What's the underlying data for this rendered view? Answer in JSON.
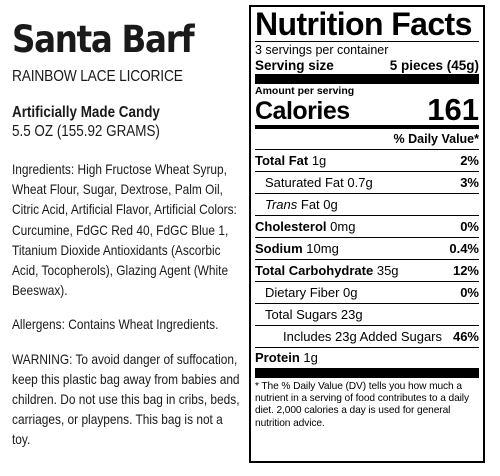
{
  "product": {
    "name": "Santa Barf",
    "subtitle": "RAINBOW LACE LICORICE",
    "candy_type": "Artificially Made Candy",
    "net_weight": "5.5 OZ (155.92 GRAMS)"
  },
  "ingredients": {
    "label": "Ingredients:",
    "text": "High Fructose Wheat Syrup, Wheat Flour, Sugar, Dextrose, Palm Oil, Citric Acid, Artificial Flavor, Artificial Colors: Curcumine, FdGC Red 40, FdGC Blue 1, Titanium Dioxide Antioxidants (Ascorbic Acid, Tocopherols), Glazing Agent (White Beeswax)."
  },
  "allergens": {
    "label": "Allergens:",
    "text": "Contains Wheat Ingredients."
  },
  "warning": {
    "text": "WARNING: To avoid danger of suffocation, keep this plastic bag away from babies and children. Do not use this bag in cribs, beds, carriages, or playpens. This bag is not a toy."
  },
  "nutrition": {
    "title": "Nutrition Facts",
    "servings_per_container": "3 servings per container",
    "serving_size_label": "Serving size",
    "serving_size_value": "5 pieces (45g)",
    "amount_per_serving": "Amount per serving",
    "calories_label": "Calories",
    "calories_value": "161",
    "daily_value_header": "% Daily Value*",
    "rows": {
      "total_fat": {
        "name": "Total Fat",
        "amount": "1g",
        "dv": "2%"
      },
      "saturated_fat": {
        "name": "Saturated Fat",
        "amount": "0.7g",
        "dv": "3%"
      },
      "trans_fat": {
        "name": "Trans",
        "suffix": "Fat 0g"
      },
      "cholesterol": {
        "name": "Cholesterol",
        "amount": "0mg",
        "dv": "0%"
      },
      "sodium": {
        "name": "Sodium",
        "amount": "10mg",
        "dv": "0.4%"
      },
      "total_carb": {
        "name": "Total Carbohydrate",
        "amount": "35g",
        "dv": "12%"
      },
      "dietary_fiber": {
        "name": "Dietary Fiber",
        "amount": "0g",
        "dv": "0%"
      },
      "total_sugars": {
        "name": "Total Sugars",
        "amount": "23g"
      },
      "added_sugars": {
        "text": "Includes 23g Added Sugars",
        "dv": "46%"
      },
      "protein": {
        "name": "Protein",
        "amount": "1g"
      }
    },
    "footnote": "* The % Daily Value (DV) tells you how much a nutrient in a serving of food contributes to a daily diet. 2,000 calories a day is used for general nutrition advice."
  }
}
